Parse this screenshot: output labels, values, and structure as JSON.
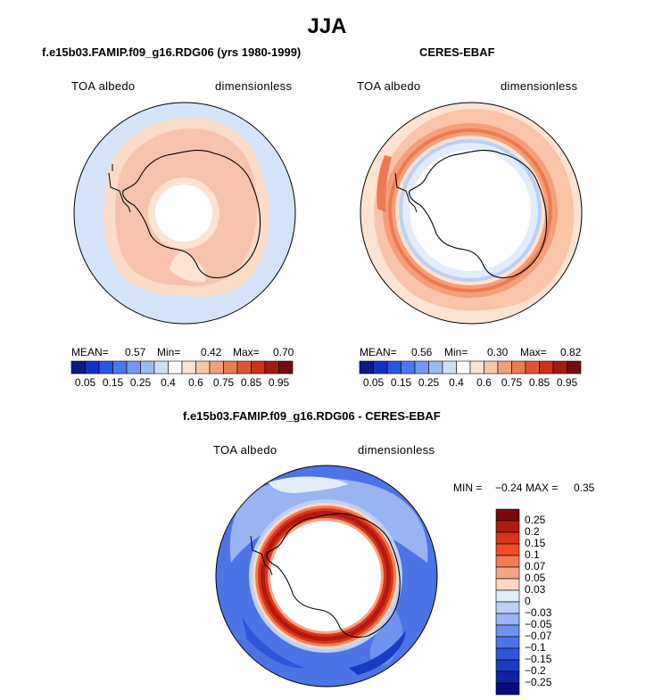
{
  "main_title": "JJA",
  "panels": [
    {
      "title": "f.e15b03.FAMIP.f09_g16.RDG06 (yrs 1980-1999)",
      "variable": "TOA albedo",
      "units": "dimensionless",
      "stats": {
        "mean_label": "MEAN=",
        "mean": "0.57",
        "min_label": "Min=",
        "min": "0.42",
        "max_label": "Max=",
        "max": "0.70"
      }
    },
    {
      "title": "CERES-EBAF",
      "variable": "TOA albedo",
      "units": "dimensionless",
      "stats": {
        "mean_label": "MEAN=",
        "mean": "0.56",
        "min_label": "Min=",
        "min": "0.30",
        "max_label": "Max=",
        "max": "0.82"
      }
    },
    {
      "title": "f.e15b03.FAMIP.f09_g16.RDG06 - CERES-EBAF",
      "variable": "TOA albedo",
      "units": "dimensionless",
      "stats": {
        "min_label": "MIN =",
        "min": "−0.24",
        "max_label": "MAX =",
        "max": "0.35"
      }
    }
  ],
  "colorbar_top": {
    "colors": [
      "#0a1a8c",
      "#1530c8",
      "#2a55e0",
      "#4a78ee",
      "#7299f2",
      "#9ebaf5",
      "#cfe0fa",
      "#ffffff",
      "#fde3d2",
      "#f9c4a8",
      "#f59f7a",
      "#ee7a52",
      "#e25532",
      "#c93318",
      "#a51a10",
      "#7a0a0a"
    ],
    "labels": [
      "0.05",
      "0.15",
      "0.25",
      "0.4",
      "0.6",
      "0.75",
      "0.85",
      "0.95"
    ]
  },
  "colorbar_diff": {
    "colors": [
      "#7a0a0a",
      "#b21a10",
      "#d93518",
      "#f04c28",
      "#f37a55",
      "#f7a486",
      "#fcd8c3",
      "#e2ecfb",
      "#bccff7",
      "#98b4f2",
      "#6f92ec",
      "#4d74e6",
      "#2f56d8",
      "#1a3cc4",
      "#0e22a4",
      "#060c80"
    ],
    "labels": [
      "0.25",
      "0.2",
      "0.15",
      "0.1",
      "0.07",
      "0.05",
      "0.03",
      "0",
      "−0.03",
      "−0.05",
      "−0.07",
      "−0.1",
      "−0.15",
      "−0.2",
      "−0.25"
    ]
  }
}
